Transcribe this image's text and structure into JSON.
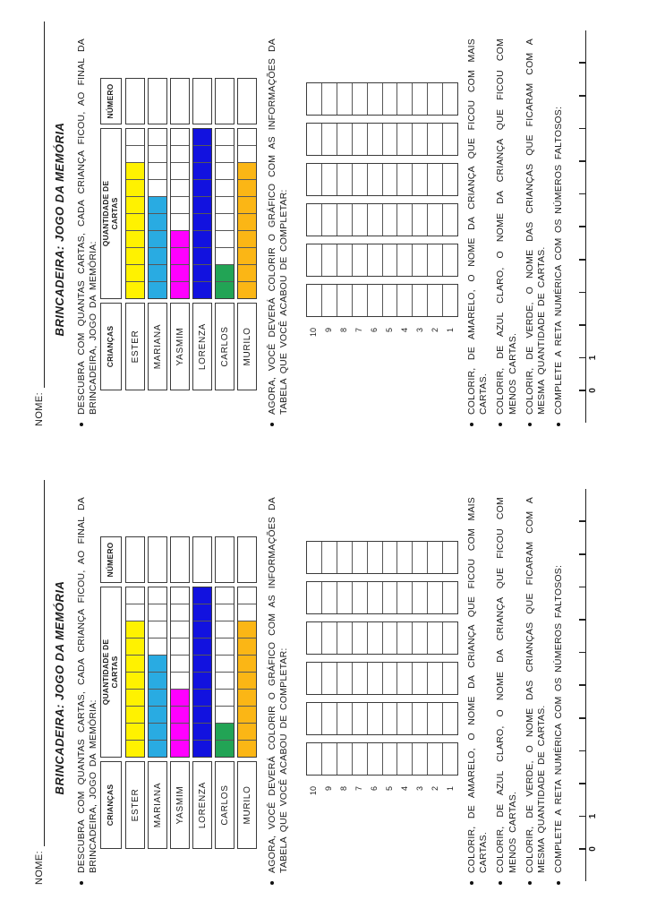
{
  "copies": 2,
  "sheet": {
    "name_label": "NOME:",
    "title": "BRINCADEIRA: JOGO DA MEMÓRIA",
    "bullet_descubra": "DESCUBRA COM QUANTAS CARTAS, CADA CRIANÇA FICOU, AO FINAL DA BRINCADEIRA, JOGO DA MEMÓRIA:",
    "table": {
      "headers": [
        "CRIANÇAS",
        "QUANTIDADE DE CARTAS",
        "NÚMERO"
      ],
      "cells_per_row": 10,
      "rows": [
        {
          "name": "ESTER",
          "color": "#FFF200",
          "cards": 8
        },
        {
          "name": "MARIANA",
          "color": "#29ABE2",
          "cards": 6
        },
        {
          "name": "YASMIM",
          "color": "#FF00FF",
          "cards": 4
        },
        {
          "name": "LORENZA",
          "color": "#1212DF",
          "cards": 10
        },
        {
          "name": "CARLOS",
          "color": "#22A455",
          "cards": 2
        },
        {
          "name": "MURILO",
          "color": "#FBB615",
          "cards": 8
        }
      ]
    },
    "bullet_agora": "AGORA, VOCÊ DEVERÁ COLORIR O GRÁFICO COM AS INFORMAÇÕES DA TABELA QUE VOCÊ ACABOU DE COMPLETAR:",
    "chart": {
      "rows": 10,
      "columns": 6,
      "axis_labels": [
        "10",
        "9",
        "8",
        "7",
        "6",
        "5",
        "4",
        "3",
        "2",
        "1"
      ]
    },
    "bullets_colorir": [
      "COLORIR, DE AMARELO, O NOME DA CRIANÇA QUE FICOU COM MAIS CARTAS.",
      "COLORIR, DE AZUL CLARO, O NOME DA CRIANÇA QUE FICOU COM MENOS CARTAS.",
      "COLORIR, DE VERDE, O NOME DAS CRIANÇAS QUE FICARAM COM A MESMA QUANTIDADE DE CARTAS.",
      "COMPLETE A RETA NUMÉRICA COM OS NÚMEROS FALTOSOS:"
    ],
    "number_line": {
      "tick_count": 11,
      "labels": [
        "0",
        "1"
      ]
    }
  }
}
